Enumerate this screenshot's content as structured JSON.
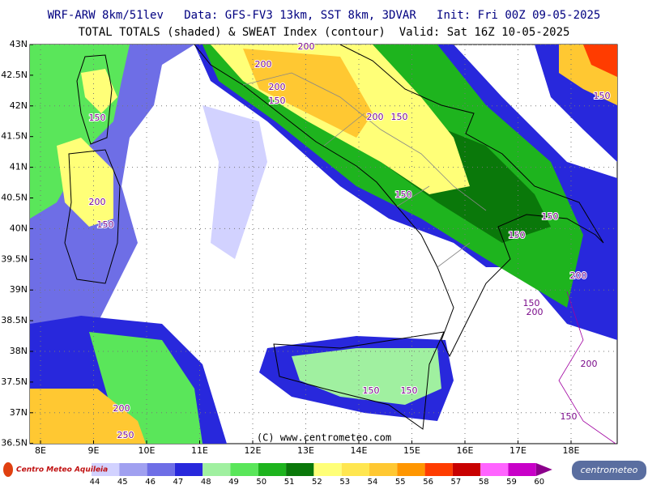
{
  "header": {
    "line1": "WRF-ARW 8km/51lev   Data: GFS-FV3 13km, SST 8km, 3DVAR   Init: Fri 00Z 09-05-2025",
    "line2": "TOTAL TOTALS (shaded) & SWEAT Index (contour)  Valid: Sat 16Z 10-05-2025"
  },
  "map": {
    "latitude_labels": [
      "43N",
      "42.5N",
      "42N",
      "41.5N",
      "41N",
      "40.5N",
      "40N",
      "39.5N",
      "39N",
      "38.5N",
      "38N",
      "37.5N",
      "37N",
      "36.5N"
    ],
    "longitude_labels": [
      "8E",
      "9E",
      "10E",
      "11E",
      "12E",
      "13E",
      "14E",
      "15E",
      "16E",
      "17E",
      "18E"
    ],
    "contour_labels": [
      "200",
      "200",
      "200",
      "150",
      "200",
      "150",
      "150",
      "200",
      "150",
      "150",
      "150",
      "150",
      "200",
      "150",
      "200",
      "200",
      "150",
      "150",
      "150",
      "200",
      "250",
      "150"
    ],
    "watermark": "(C) www.centrometeo.com"
  },
  "legend": {
    "levels": [
      44,
      45,
      46,
      47,
      48,
      49,
      50,
      51,
      52,
      53,
      54,
      55,
      56,
      57,
      58,
      59,
      60
    ],
    "colors": [
      "#d2d2ff",
      "#a0a0f0",
      "#6e6ee6",
      "#2828dc",
      "#a0f0a0",
      "#5ae65a",
      "#1eb41e",
      "#0a780a",
      "#ffff78",
      "#ffe650",
      "#ffc832",
      "#ff9600",
      "#ff3c00",
      "#c80000",
      "#ff64ff",
      "#c800c8",
      "#8c008c"
    ]
  },
  "logos": {
    "left": "Centro Meteo Aquileia",
    "right": "centrometeo"
  }
}
